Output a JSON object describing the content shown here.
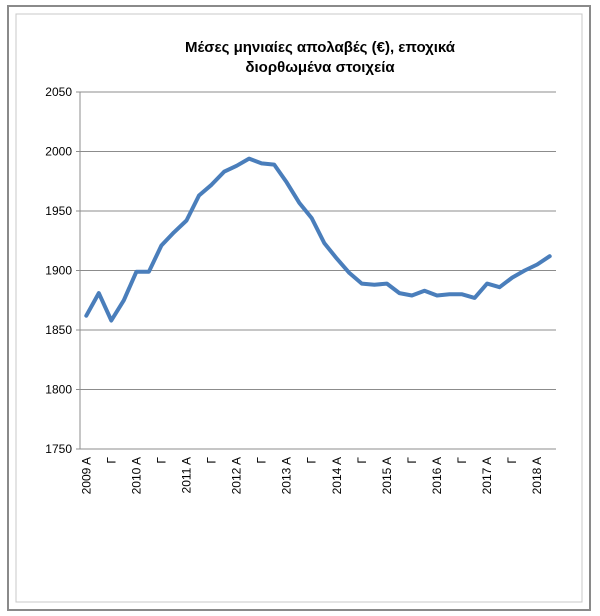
{
  "chart_data": {
    "type": "line",
    "title": [
      "Μέσες μηνιαίες απολαβές (€), εποχικά",
      "διορθωμένα  στοιχεία"
    ],
    "categories": [
      "2009 A",
      null,
      "Γ",
      null,
      "2010 A",
      null,
      "Γ",
      null,
      "2011 A",
      null,
      "Γ",
      null,
      "2012 A",
      null,
      "Γ",
      null,
      "2013 A",
      null,
      "Γ",
      null,
      "2014 A",
      null,
      "Γ",
      null,
      "2015 A",
      null,
      "Γ",
      null,
      "2016 A",
      null,
      "Γ",
      null,
      "2017 A",
      null,
      "Γ",
      null,
      "2018 A",
      null
    ],
    "values": [
      1862,
      1881,
      1858,
      1875,
      1899,
      1899,
      1921,
      1932,
      1942,
      1963,
      1972,
      1983,
      1988,
      1994,
      1990,
      1989,
      1974,
      1957,
      1944,
      1923,
      1910,
      1898,
      1889,
      1888,
      1889,
      1881,
      1879,
      1883,
      1879,
      1880,
      1880,
      1877,
      1889,
      1886,
      1894,
      1900,
      1905,
      1912
    ],
    "color": "#4a7ebb",
    "ylim": [
      1750,
      2050
    ],
    "yticks": [
      1750,
      1800,
      1850,
      1900,
      1950,
      2000,
      2050
    ],
    "grid": true
  }
}
